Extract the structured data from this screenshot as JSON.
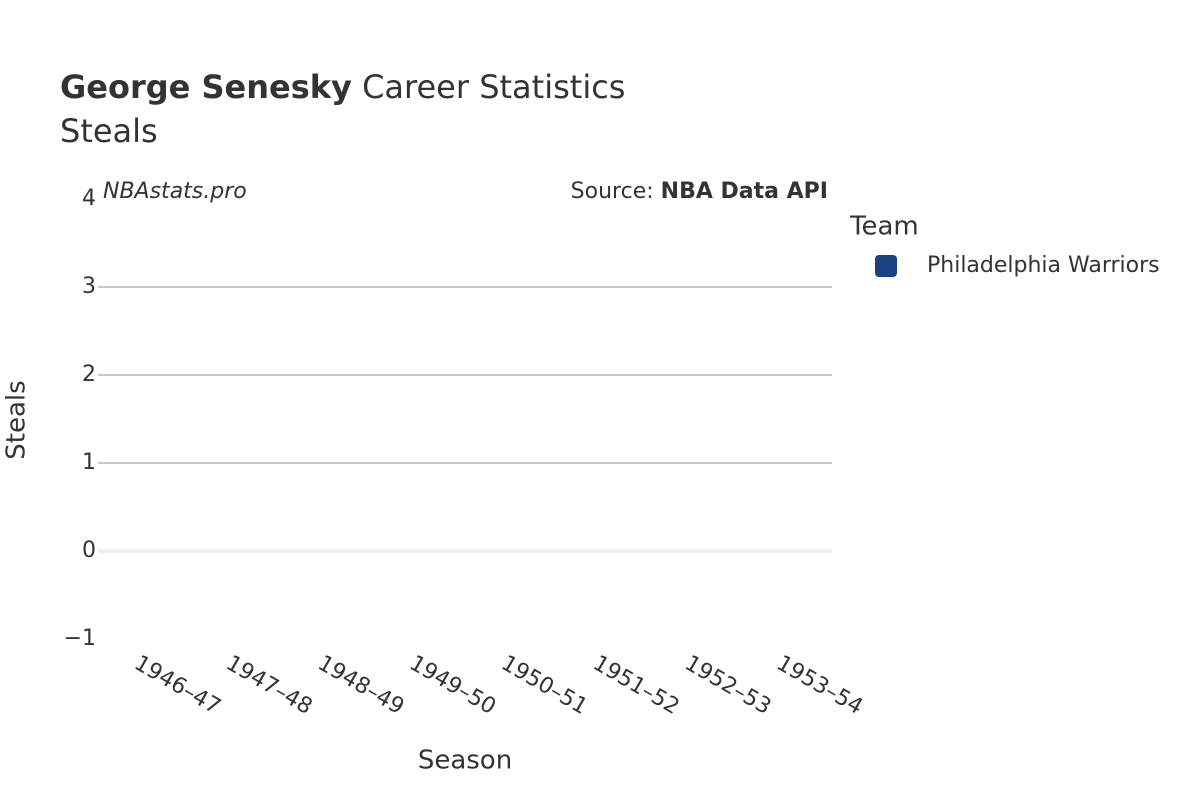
{
  "chart_data": {
    "type": "line",
    "title_name": "George Senesky",
    "title_text": "Career Statistics",
    "subtitle": "Steals",
    "watermark": "NBAstats.pro",
    "source_label": "Source:",
    "source": "NBA Data API",
    "x_label": "Season",
    "y_label": "Steals",
    "categories": [
      "1946–47",
      "1947–48",
      "1948–49",
      "1949–50",
      "1950–51",
      "1951–52",
      "1952–53",
      "1953–54"
    ],
    "series": [
      {
        "name": "Philadelphia Warriors",
        "color": "#1a4282",
        "values": [
          null,
          null,
          null,
          null,
          null,
          null,
          null,
          null
        ]
      }
    ],
    "legend_title": "Team",
    "legend": "right",
    "ylim": [
      -1,
      4
    ],
    "yticks": [
      {
        "value": -1,
        "label": "−1"
      },
      0,
      1,
      2,
      3,
      4
    ],
    "grid": true
  }
}
